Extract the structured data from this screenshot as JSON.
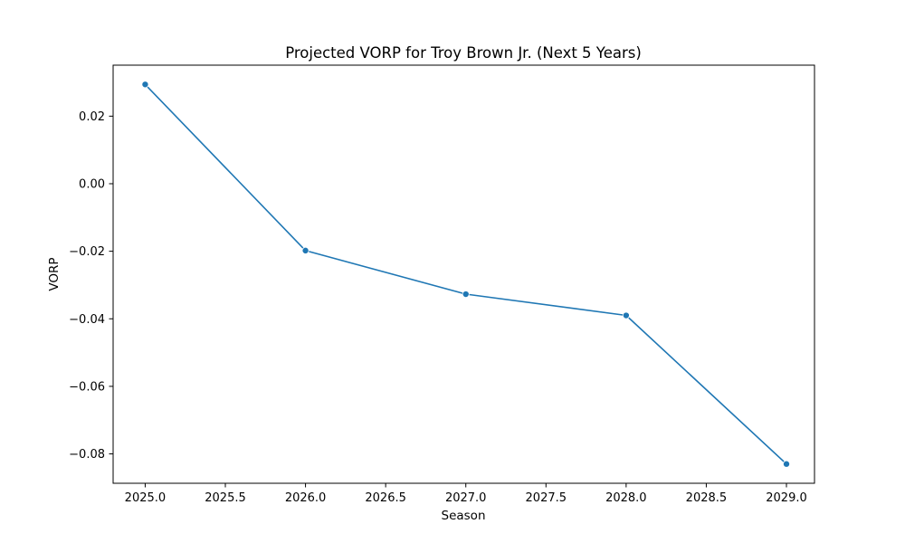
{
  "chart_data": {
    "type": "line",
    "title": "Projected VORP for Troy Brown Jr. (Next 5 Years)",
    "xlabel": "Season",
    "ylabel": "VORP",
    "x": [
      2025.0,
      2026.0,
      2027.0,
      2028.0,
      2029.0
    ],
    "values": [
      0.0294,
      -0.0198,
      -0.0327,
      -0.039,
      -0.083
    ],
    "xlim": [
      2024.8,
      2029.175
    ],
    "ylim": [
      -0.0887,
      0.0351
    ],
    "x_ticks": [
      2025.0,
      2025.5,
      2026.0,
      2026.5,
      2027.0,
      2027.5,
      2028.0,
      2028.5,
      2029.0
    ],
    "x_tick_labels": [
      "2025.0",
      "2025.5",
      "2026.0",
      "2026.5",
      "2027.0",
      "2027.5",
      "2028.0",
      "2028.5",
      "2029.0"
    ],
    "y_ticks": [
      0.02,
      0.0,
      -0.02,
      -0.04,
      -0.06,
      -0.08
    ],
    "y_tick_labels": [
      "0.02",
      "0.00",
      "−0.02",
      "−0.04",
      "−0.06",
      "−0.08"
    ],
    "grid": false,
    "series_color": "#1f77b4",
    "marker": "circle"
  }
}
